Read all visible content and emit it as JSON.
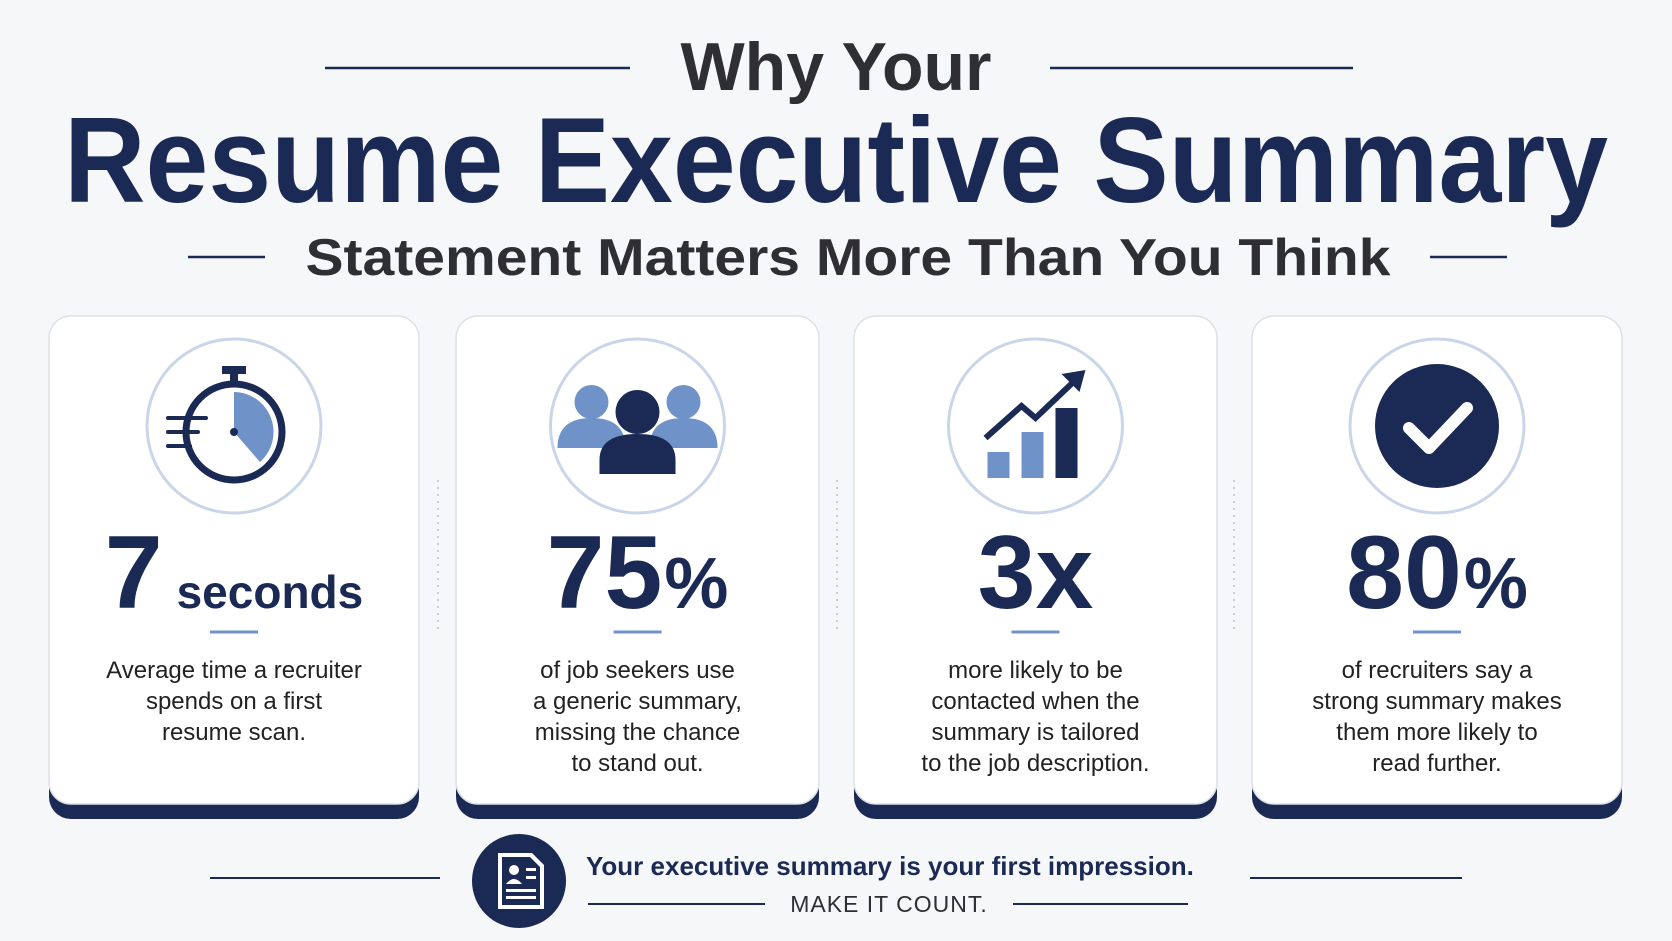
{
  "header": {
    "line1": "Why Your",
    "line2": "Resume Executive Summary",
    "line3": "Statement Matters More Than You Think"
  },
  "cards": [
    {
      "number": "7",
      "unit": "seconds",
      "description_lines": [
        "Average time a recruiter",
        "spends on a first",
        "resume scan."
      ]
    },
    {
      "number": "75",
      "unit": "%",
      "description_lines": [
        "of job seekers use",
        "a generic summary,",
        "missing the chance",
        "to stand out."
      ]
    },
    {
      "number": "3x",
      "unit": null,
      "description_lines": [
        "more likely to be",
        "contacted when the",
        "summary is tailored",
        "to the job description."
      ]
    },
    {
      "number": "80",
      "unit": "%",
      "description_lines": [
        "of recruiters say a",
        "strong summary makes",
        "them more likely to",
        "read further."
      ]
    }
  ],
  "footer": {
    "message": "Your executive summary is your first impression.",
    "cta": "MAKE IT COUNT."
  }
}
